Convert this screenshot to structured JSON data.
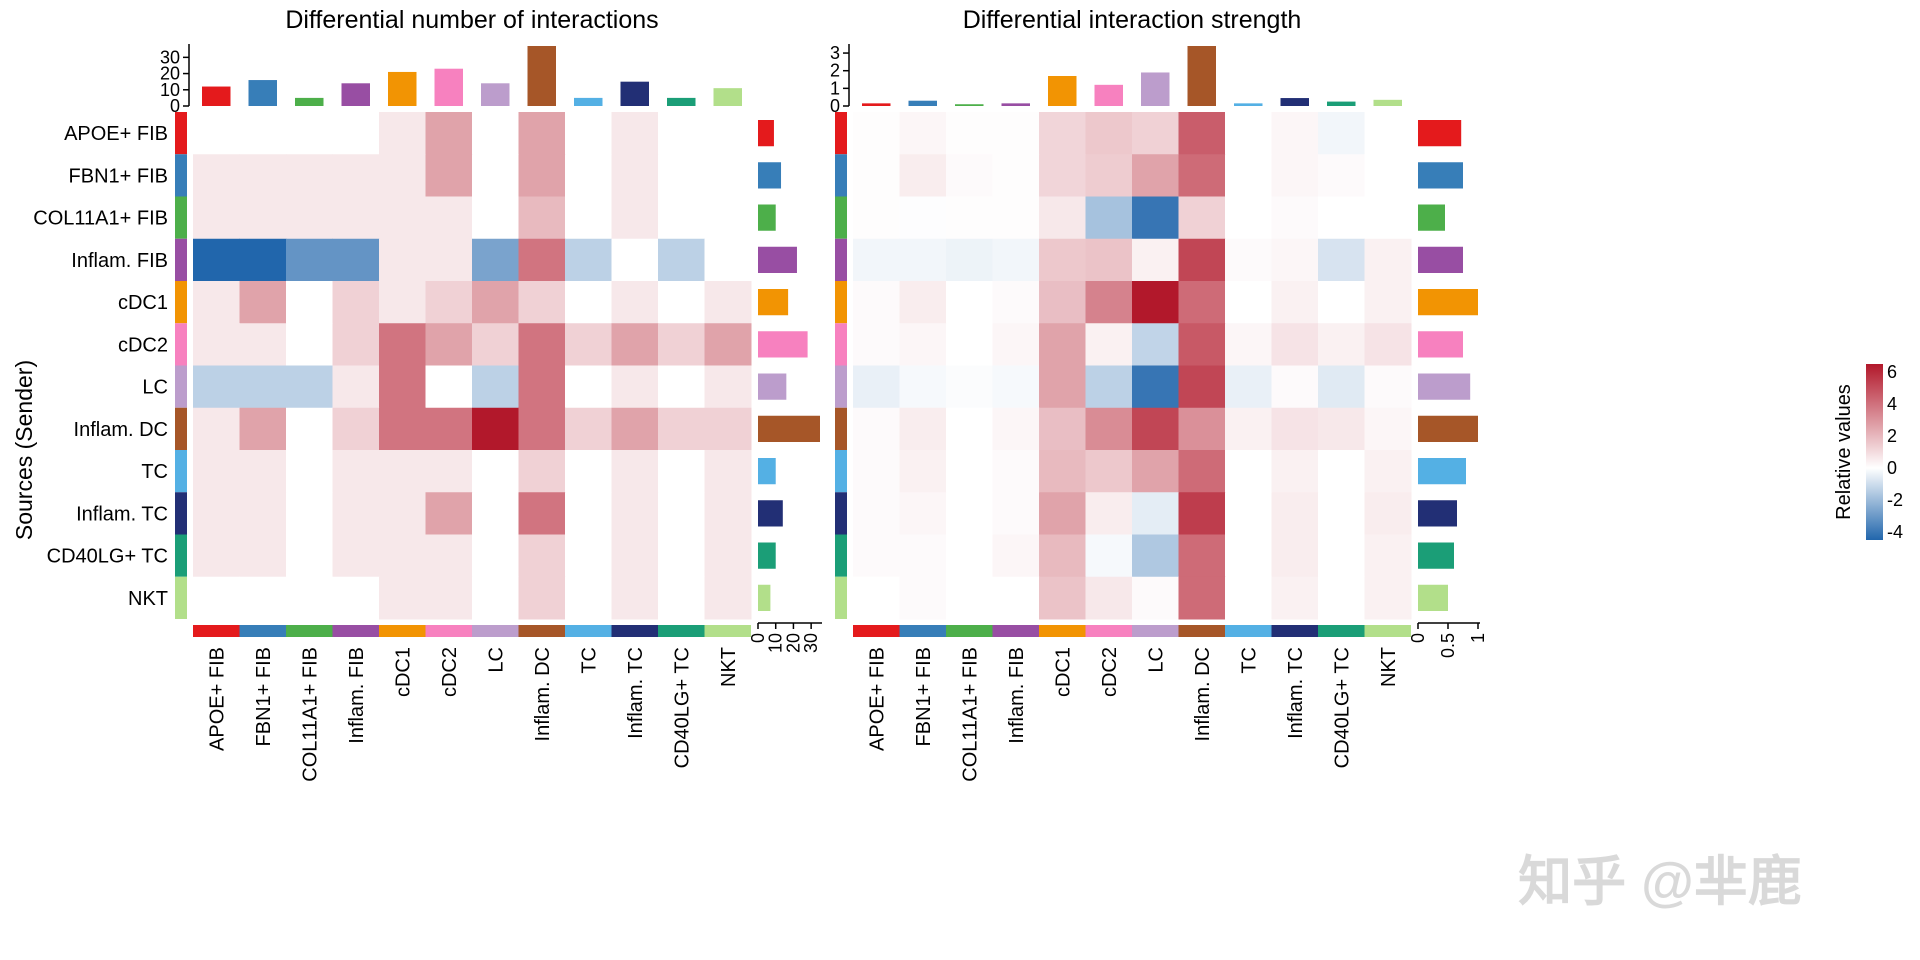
{
  "figure": {
    "ylabel": "Sources (Sender)",
    "watermark": "知乎 @芈鹿"
  },
  "groups": [
    {
      "name": "APOE+ FIB",
      "color": "#E41A1C"
    },
    {
      "name": "FBN1+ FIB",
      "color": "#377EB8"
    },
    {
      "name": "COL11A1+ FIB",
      "color": "#4DAF4A"
    },
    {
      "name": "Inflam. FIB",
      "color": "#984EA3"
    },
    {
      "name": "cDC1",
      "color": "#F29403"
    },
    {
      "name": "cDC2",
      "color": "#F781BF"
    },
    {
      "name": "LC",
      "color": "#BC9DCC"
    },
    {
      "name": "Inflam. DC",
      "color": "#A65628"
    },
    {
      "name": "TC",
      "color": "#54B0E4"
    },
    {
      "name": "Inflam. TC",
      "color": "#222F75"
    },
    {
      "name": "CD40LG+ TC",
      "color": "#1B9E77"
    },
    {
      "name": "NKT",
      "color": "#B2DF8A"
    }
  ],
  "colorbar": {
    "title": "Relative values",
    "ticks": [
      6,
      4,
      2,
      0,
      -2,
      -4
    ],
    "ticklabels": [
      "6",
      "4",
      "2",
      "0",
      "-2",
      "-4"
    ],
    "min": -4.5,
    "max": 6.5,
    "color_low": "#2166AC",
    "color_mid": "#FFFFFF",
    "color_high": "#B2182B"
  },
  "chart_data": [
    {
      "type": "heatmap",
      "title": "Differential number of interactions",
      "colormax": 10,
      "matrix": [
        [
          0,
          0,
          0,
          0,
          1,
          4,
          0,
          4,
          0,
          1,
          0,
          0
        ],
        [
          1,
          1,
          1,
          1,
          1,
          4,
          0,
          4,
          0,
          1,
          0,
          0
        ],
        [
          1,
          1,
          1,
          1,
          1,
          1,
          0,
          3,
          0,
          1,
          0,
          0
        ],
        [
          -10,
          -10,
          -7,
          -7,
          1,
          1,
          -6,
          6,
          -3,
          0,
          -3,
          0
        ],
        [
          1,
          4,
          0,
          2,
          1,
          2,
          4,
          2,
          0,
          1,
          0,
          1
        ],
        [
          1,
          1,
          0,
          2,
          6,
          4,
          2,
          6,
          2,
          4,
          2,
          4
        ],
        [
          -3,
          -3,
          -3,
          1,
          6,
          0,
          -3,
          6,
          0,
          1,
          0,
          1
        ],
        [
          1,
          4,
          0,
          2,
          6,
          6,
          10,
          6,
          2,
          4,
          2,
          2
        ],
        [
          1,
          1,
          0,
          1,
          1,
          1,
          0,
          2,
          0,
          1,
          0,
          1
        ],
        [
          1,
          1,
          0,
          1,
          1,
          4,
          0,
          6,
          0,
          1,
          0,
          1
        ],
        [
          1,
          1,
          0,
          1,
          1,
          1,
          0,
          2,
          0,
          1,
          0,
          1
        ],
        [
          0,
          0,
          0,
          0,
          1,
          1,
          0,
          2,
          0,
          1,
          0,
          1
        ]
      ],
      "top_bar": {
        "values": [
          12,
          16,
          5,
          14,
          21,
          23,
          14,
          37,
          5,
          15,
          5,
          11
        ],
        "axis_max": 37,
        "ticks": [
          0,
          10,
          20,
          30
        ],
        "ticklabels": [
          "0",
          "10",
          "20",
          "30"
        ]
      },
      "right_bar": {
        "values": [
          9,
          13,
          10,
          22,
          17,
          28,
          16,
          35,
          10,
          14,
          10,
          7
        ],
        "axis_max": 35,
        "ticks": [
          0,
          10,
          20,
          30
        ],
        "ticklabels": [
          "0",
          "10",
          "20",
          "30"
        ]
      }
    },
    {
      "type": "heatmap",
      "title": "Differential interaction strength",
      "colormax": 5,
      "matrix": [
        [
          0.05,
          0.2,
          0.05,
          0.05,
          0.9,
          1.2,
          1.0,
          3.5,
          0.0,
          0.2,
          -0.3,
          0.0
        ],
        [
          0.05,
          0.4,
          0.1,
          0.05,
          0.9,
          1.1,
          2.0,
          3.2,
          0.0,
          0.2,
          0.1,
          0.0
        ],
        [
          0.05,
          -0.05,
          0.05,
          0.05,
          0.5,
          -2.0,
          -4.5,
          1.0,
          0.0,
          0.1,
          0.0,
          0.0
        ],
        [
          -0.3,
          -0.3,
          -0.4,
          -0.3,
          1.2,
          1.3,
          0.3,
          4.0,
          0.1,
          0.2,
          -0.9,
          0.3
        ],
        [
          0.1,
          0.4,
          0.0,
          0.1,
          1.4,
          2.7,
          5.0,
          3.2,
          0.0,
          0.3,
          0.0,
          0.3
        ],
        [
          0.1,
          0.2,
          0.0,
          0.2,
          2.0,
          0.3,
          -1.4,
          3.6,
          0.2,
          0.6,
          0.3,
          0.6
        ],
        [
          -0.5,
          -0.2,
          -0.1,
          -0.2,
          2.0,
          -1.5,
          -4.5,
          4.0,
          -0.5,
          0.1,
          -0.7,
          0.1
        ],
        [
          0.1,
          0.4,
          0.0,
          0.2,
          1.4,
          2.5,
          4.0,
          2.4,
          0.3,
          0.6,
          0.5,
          0.2
        ],
        [
          0.1,
          0.3,
          0.0,
          0.1,
          1.5,
          1.2,
          2.0,
          3.2,
          0.0,
          0.3,
          0.0,
          0.3
        ],
        [
          0.1,
          0.2,
          0.0,
          0.1,
          2.0,
          0.4,
          -0.6,
          4.2,
          0.0,
          0.4,
          0.0,
          0.4
        ],
        [
          0.1,
          0.1,
          0.0,
          0.2,
          1.5,
          -0.2,
          -1.8,
          3.2,
          0.0,
          0.4,
          0.0,
          0.3
        ],
        [
          0.0,
          0.1,
          0.0,
          0.0,
          1.3,
          0.5,
          0.1,
          3.2,
          0.0,
          0.3,
          0.0,
          0.3
        ]
      ],
      "top_bar": {
        "values": [
          0.15,
          0.3,
          0.1,
          0.15,
          1.7,
          1.2,
          1.9,
          3.4,
          0.15,
          0.45,
          0.25,
          0.35
        ],
        "axis_max": 3.4,
        "ticks": [
          0,
          1,
          2,
          3
        ],
        "ticklabels": [
          "0",
          "1",
          "2",
          "3"
        ]
      },
      "right_bar": {
        "values": [
          0.72,
          0.75,
          0.45,
          0.75,
          1.0,
          0.75,
          0.87,
          1.0,
          0.8,
          0.65,
          0.6,
          0.5
        ],
        "axis_max": 1.0,
        "ticks": [
          0,
          0.5,
          1
        ],
        "ticklabels": [
          "0",
          "0.5",
          "1"
        ]
      }
    }
  ]
}
